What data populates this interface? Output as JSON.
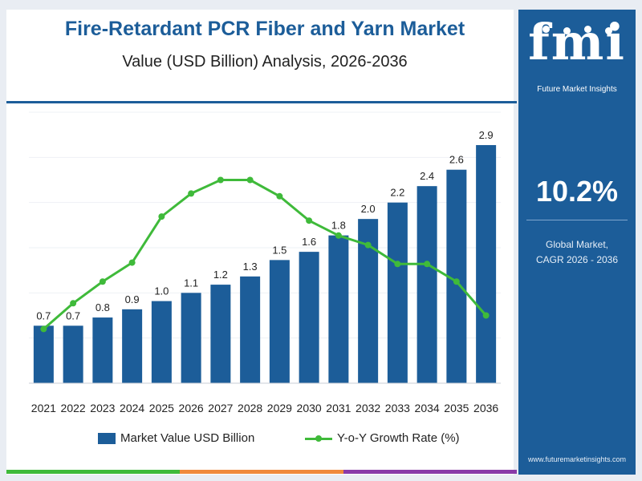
{
  "header": {
    "title": "Fire-Retardant PCR Fiber and Yarn Market",
    "subtitle": "Value (USD Billion) Analysis, 2026-2036"
  },
  "side_panel": {
    "logo_text": "fmi",
    "tagline": "Future Market Insights",
    "kpi_value": "10.2%",
    "kpi_caption_line1": "Global Market,",
    "kpi_caption_line2": "CAGR 2026 - 2036",
    "website": "www.futuremarketinsights.com"
  },
  "legend": {
    "bar_label": "Market Value USD Billion",
    "line_label": "Y-o-Y Growth Rate (%)"
  },
  "colors": {
    "brand_blue": "#1c5d99",
    "bar": "#1c5d99",
    "line": "#3fba3a",
    "stripe_green": "#3fba3a",
    "stripe_orange": "#f08a3c",
    "stripe_purple": "#8a3aa8"
  },
  "chart_data": {
    "type": "bar",
    "title": "Fire-Retardant PCR Fiber and Yarn Market",
    "subtitle": "Value (USD Billion) Analysis, 2026-2036",
    "categories": [
      "2021",
      "2022",
      "2023",
      "2024",
      "2025",
      "2026",
      "2027",
      "2028",
      "2029",
      "2030",
      "2031",
      "2032",
      "2033",
      "2034",
      "2035",
      "2036"
    ],
    "ylim": [
      0,
      3.3
    ],
    "series": [
      {
        "name": "Market Value USD Billion",
        "kind": "bar",
        "values": [
          0.7,
          0.7,
          0.8,
          0.9,
          1.0,
          1.1,
          1.2,
          1.3,
          1.5,
          1.6,
          1.8,
          2.0,
          2.2,
          2.4,
          2.6,
          2.9
        ],
        "labels": [
          "0.7",
          "0.7",
          "0.8",
          "0.9",
          "1.0",
          "1.1",
          "1.2",
          "1.3",
          "1.5",
          "1.6",
          "1.8",
          "2.0",
          "2.2",
          "2.4",
          "2.6",
          "2.9"
        ]
      },
      {
        "name": "Y-o-Y Growth Rate (%)",
        "kind": "line",
        "values": [
          4.0,
          5.9,
          7.5,
          8.9,
          12.3,
          14.0,
          15.0,
          15.0,
          13.8,
          12.0,
          10.9,
          10.2,
          8.8,
          8.8,
          7.5,
          5.0
        ],
        "ylim": [
          0,
          20
        ]
      }
    ],
    "legend_position": "bottom",
    "grid": true
  }
}
